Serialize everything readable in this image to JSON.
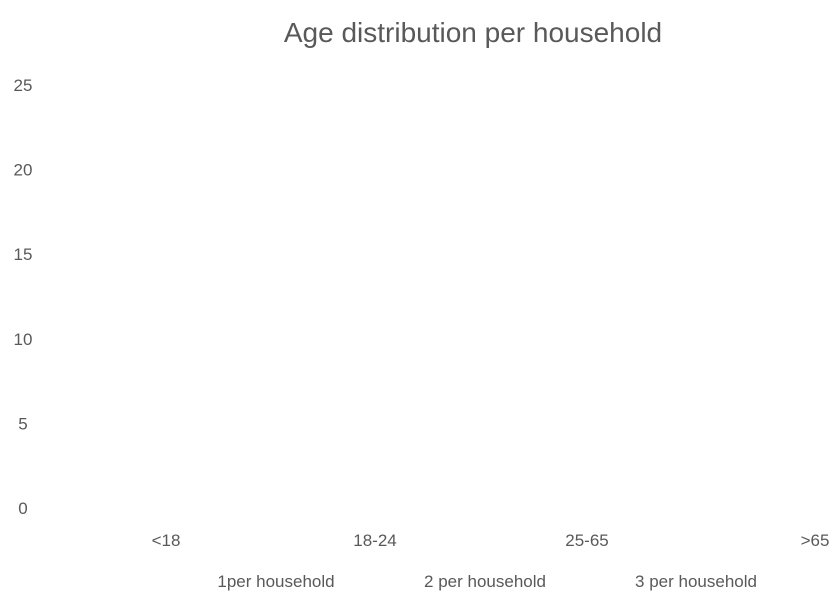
{
  "chart_data": {
    "type": "bar",
    "title": "Age distribution per household",
    "xlabel": "",
    "ylabel": "",
    "categories": [
      "<18",
      "18-24",
      "25-65",
      ">65"
    ],
    "y_ticks": [
      "0",
      "5",
      "10",
      "15",
      "20",
      "25"
    ],
    "ylim": [
      0,
      25
    ],
    "series": [
      {
        "name": "1per household",
        "values": [
          null,
          null,
          null,
          null
        ]
      },
      {
        "name": "2 per household",
        "values": [
          null,
          null,
          null,
          null
        ]
      },
      {
        "name": "3 per household",
        "values": [
          null,
          null,
          null,
          null
        ]
      }
    ],
    "grid": false,
    "legend_position": "bottom"
  },
  "colors": {
    "text": "#595959",
    "title": "#595959"
  }
}
